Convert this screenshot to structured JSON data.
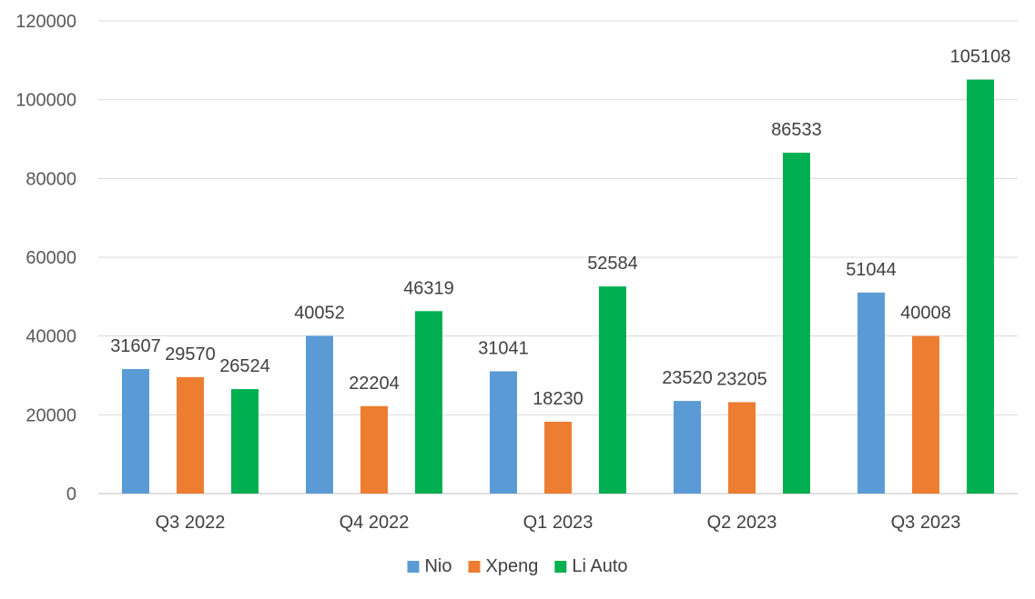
{
  "chart_data": {
    "type": "bar",
    "title": "",
    "xlabel": "",
    "ylabel": "",
    "ylim": [
      0,
      120000
    ],
    "yticks": [
      0,
      20000,
      40000,
      60000,
      80000,
      100000,
      120000
    ],
    "grid": true,
    "legend_position": "bottom",
    "categories": [
      "Q3 2022",
      "Q4 2022",
      "Q1 2023",
      "Q2 2023",
      "Q3 2023"
    ],
    "series": [
      {
        "name": "Nio",
        "color": "#5b9bd5",
        "values": [
          31607,
          40052,
          31041,
          23520,
          51044
        ]
      },
      {
        "name": "Xpeng",
        "color": "#ed7d31",
        "values": [
          29570,
          22204,
          18230,
          23205,
          40008
        ]
      },
      {
        "name": "Li Auto",
        "color": "#00b050",
        "values": [
          26524,
          46319,
          52584,
          86533,
          105108
        ]
      }
    ]
  }
}
